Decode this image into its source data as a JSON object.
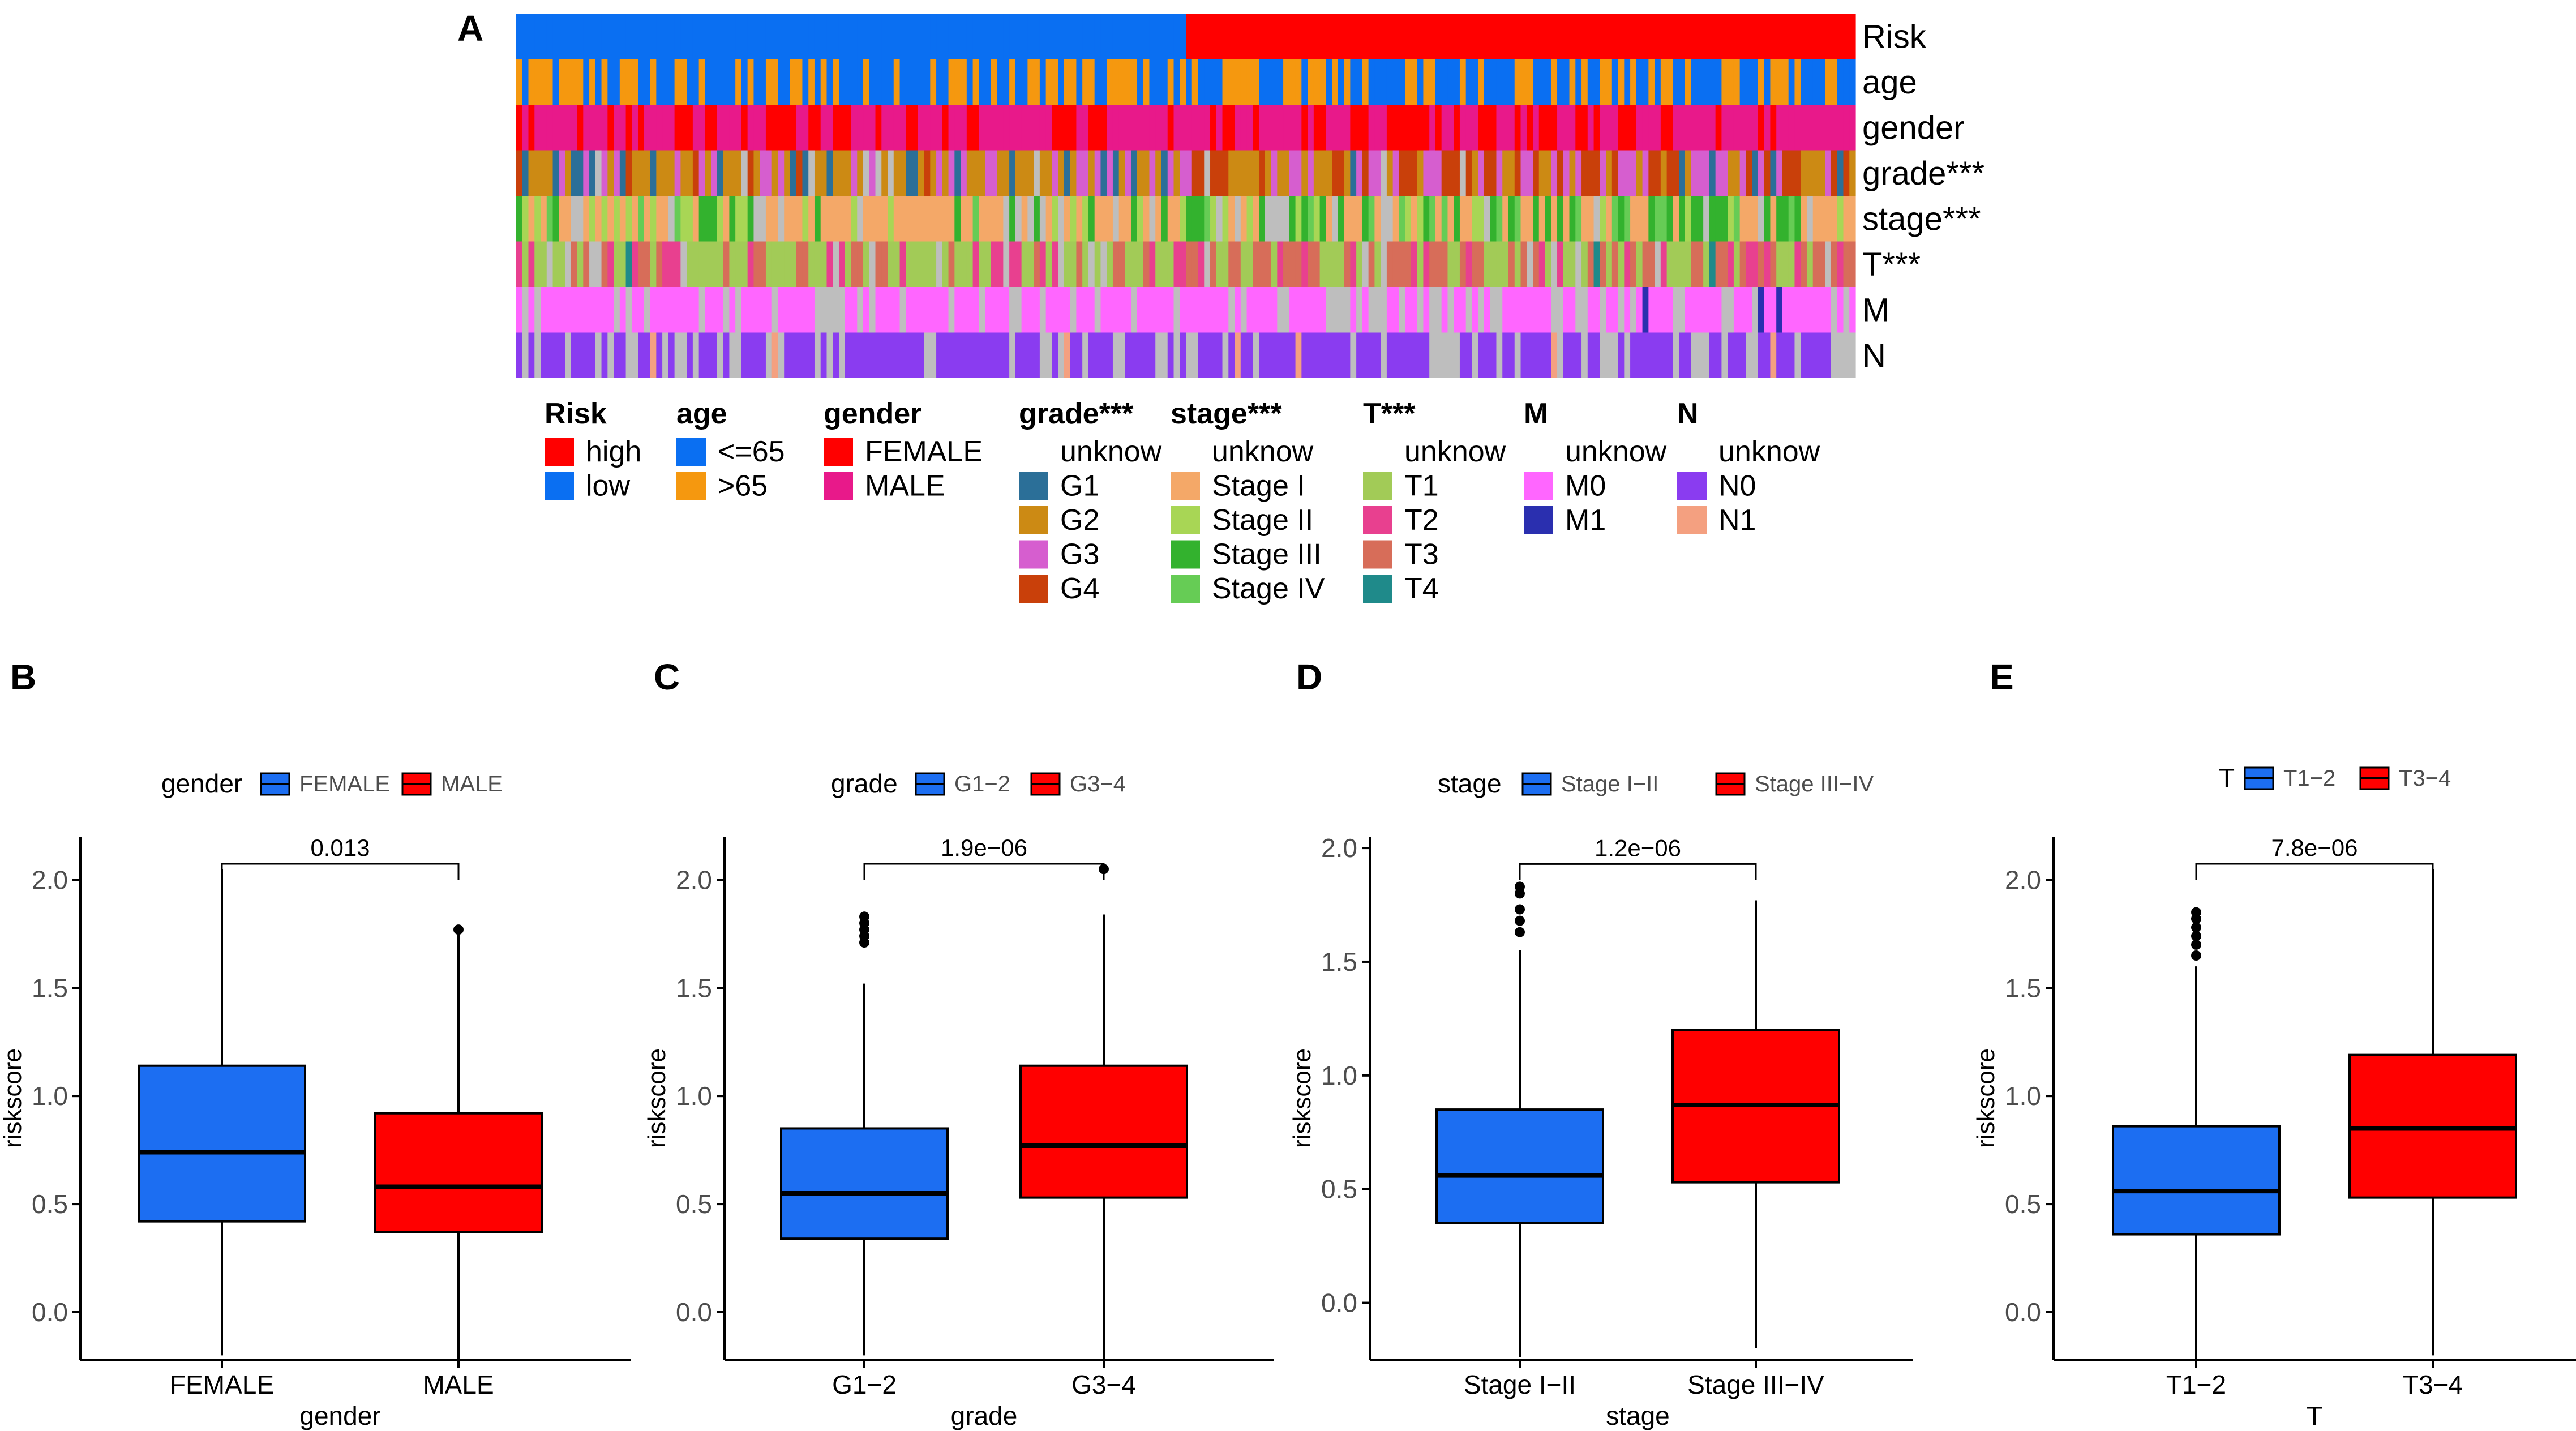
{
  "panel_letters": [
    "A",
    "B",
    "C",
    "D",
    "E"
  ],
  "heatmap": {
    "rows": [
      {
        "label": "Risk",
        "var": "Risk"
      },
      {
        "label": "age",
        "var": "age"
      },
      {
        "label": "gender",
        "var": "gender"
      },
      {
        "label": "grade***",
        "var": "grade"
      },
      {
        "label": "stage***",
        "var": "stage"
      },
      {
        "label": "T***",
        "var": "T"
      },
      {
        "label": "M",
        "var": "M"
      },
      {
        "label": "N",
        "var": "N"
      }
    ],
    "n_samples": 220,
    "legend": [
      {
        "title": "Risk",
        "items": [
          {
            "label": "high",
            "color": "#FF0000"
          },
          {
            "label": "low",
            "color": "#0A6FF2"
          }
        ]
      },
      {
        "title": "age",
        "items": [
          {
            "label": "<=65",
            "color": "#0A6FF2"
          },
          {
            "label": ">65",
            "color": "#F5980F"
          }
        ]
      },
      {
        "title": "gender",
        "items": [
          {
            "label": "FEMALE",
            "color": "#FF0000"
          },
          {
            "label": "MALE",
            "color": "#E8198A"
          }
        ]
      },
      {
        "title": "grade***",
        "items": [
          {
            "label": "unknow",
            "color": "#FFFFFF"
          },
          {
            "label": "G1",
            "color": "#2B6F98"
          },
          {
            "label": "G2",
            "color": "#CC8A14"
          },
          {
            "label": "G3",
            "color": "#D65ECF"
          },
          {
            "label": "G4",
            "color": "#C9400A"
          }
        ]
      },
      {
        "title": "stage***",
        "items": [
          {
            "label": "unknow",
            "color": "#FFFFFF"
          },
          {
            "label": "Stage I",
            "color": "#F4A868"
          },
          {
            "label": "Stage II",
            "color": "#A8D655"
          },
          {
            "label": "Stage III",
            "color": "#33B22E"
          },
          {
            "label": "Stage IV",
            "color": "#66CC55"
          }
        ]
      },
      {
        "title": "T***",
        "items": [
          {
            "label": "unknow",
            "color": "#FFFFFF"
          },
          {
            "label": "T1",
            "color": "#A2CB57"
          },
          {
            "label": "T2",
            "color": "#E8408F"
          },
          {
            "label": "T3",
            "color": "#D76D59"
          },
          {
            "label": "T4",
            "color": "#1F8A8A"
          }
        ]
      },
      {
        "title": "M",
        "items": [
          {
            "label": "unknow",
            "color": "#FFFFFF"
          },
          {
            "label": "M0",
            "color": "#FF66FF"
          },
          {
            "label": "M1",
            "color": "#2A2FAF"
          }
        ]
      },
      {
        "title": "N",
        "items": [
          {
            "label": "unknow",
            "color": "#FFFFFF"
          },
          {
            "label": "N0",
            "color": "#8A3CF0"
          },
          {
            "label": "N1",
            "color": "#F4A080"
          }
        ]
      }
    ],
    "unknown_color": "#BEBEBE"
  },
  "chart_data": [
    {
      "type": "box",
      "panel": "B",
      "legend_title": "gender",
      "categories": [
        "FEMALE",
        "MALE"
      ],
      "colors": [
        "#1C6EF2",
        "#FF0000"
      ],
      "xlabel": "gender",
      "ylabel": "riskscore",
      "ylim": [
        -0.22,
        2.2
      ],
      "yticks": [
        0.0,
        0.5,
        1.0,
        1.5,
        2.0
      ],
      "ytick_labels": [
        "0.0",
        "0.5",
        "1.0",
        "1.5",
        "2.0"
      ],
      "boxes": [
        {
          "lower_whisker": -0.2,
          "q1": 0.42,
          "median": 0.74,
          "q3": 1.14,
          "upper_whisker": 2.05,
          "outliers": []
        },
        {
          "lower_whisker": -0.24,
          "q1": 0.37,
          "median": 0.58,
          "q3": 0.92,
          "upper_whisker": 1.75,
          "outliers": [
            1.77
          ]
        }
      ],
      "pvalue": "0.013"
    },
    {
      "type": "box",
      "panel": "C",
      "legend_title": "grade",
      "categories": [
        "G1−2",
        "G3−4"
      ],
      "colors": [
        "#1C6EF2",
        "#FF0000"
      ],
      "xlabel": "grade",
      "ylabel": "riskscore",
      "ylim": [
        -0.22,
        2.2
      ],
      "yticks": [
        0.0,
        0.5,
        1.0,
        1.5,
        2.0
      ],
      "ytick_labels": [
        "0.0",
        "0.5",
        "1.0",
        "1.5",
        "2.0"
      ],
      "boxes": [
        {
          "lower_whisker": -0.2,
          "q1": 0.34,
          "median": 0.55,
          "q3": 0.85,
          "upper_whisker": 1.52,
          "outliers": [
            1.71,
            1.74,
            1.77,
            1.8,
            1.83
          ]
        },
        {
          "lower_whisker": -0.24,
          "q1": 0.53,
          "median": 0.77,
          "q3": 1.14,
          "upper_whisker": 1.84,
          "outliers": [
            2.05
          ]
        }
      ],
      "pvalue": "1.9e−06"
    },
    {
      "type": "box",
      "panel": "D",
      "legend_title": "stage",
      "categories": [
        "Stage I−II",
        "Stage III−IV"
      ],
      "colors": [
        "#1C6EF2",
        "#FF0000"
      ],
      "xlabel": "stage",
      "ylabel": "riskscore",
      "ylim": [
        -0.25,
        2.05
      ],
      "yticks": [
        0.0,
        0.5,
        1.0,
        1.5,
        2.0
      ],
      "ytick_labels": [
        "0.0",
        "0.5",
        "1.0",
        "1.5",
        "2.0"
      ],
      "boxes": [
        {
          "lower_whisker": -0.24,
          "q1": 0.35,
          "median": 0.56,
          "q3": 0.85,
          "upper_whisker": 1.55,
          "outliers": [
            1.63,
            1.68,
            1.73,
            1.8,
            1.83
          ]
        },
        {
          "lower_whisker": -0.2,
          "q1": 0.53,
          "median": 0.87,
          "q3": 1.2,
          "upper_whisker": 1.77,
          "outliers": []
        }
      ],
      "pvalue": "1.2e−06"
    },
    {
      "type": "box",
      "panel": "E",
      "legend_title": "T",
      "categories": [
        "T1−2",
        "T3−4"
      ],
      "colors": [
        "#1C6EF2",
        "#FF0000"
      ],
      "xlabel": "T",
      "ylabel": "riskscore",
      "ylim": [
        -0.22,
        2.2
      ],
      "yticks": [
        0.0,
        0.5,
        1.0,
        1.5,
        2.0
      ],
      "ytick_labels": [
        "0.0",
        "0.5",
        "1.0",
        "1.5",
        "2.0"
      ],
      "boxes": [
        {
          "lower_whisker": -0.24,
          "q1": 0.36,
          "median": 0.56,
          "q3": 0.86,
          "upper_whisker": 1.6,
          "outliers": [
            1.65,
            1.7,
            1.74,
            1.78,
            1.82,
            1.85
          ]
        },
        {
          "lower_whisker": -0.2,
          "q1": 0.53,
          "median": 0.85,
          "q3": 1.19,
          "upper_whisker": 2.05,
          "outliers": []
        }
      ],
      "pvalue": "7.8e−06"
    }
  ]
}
